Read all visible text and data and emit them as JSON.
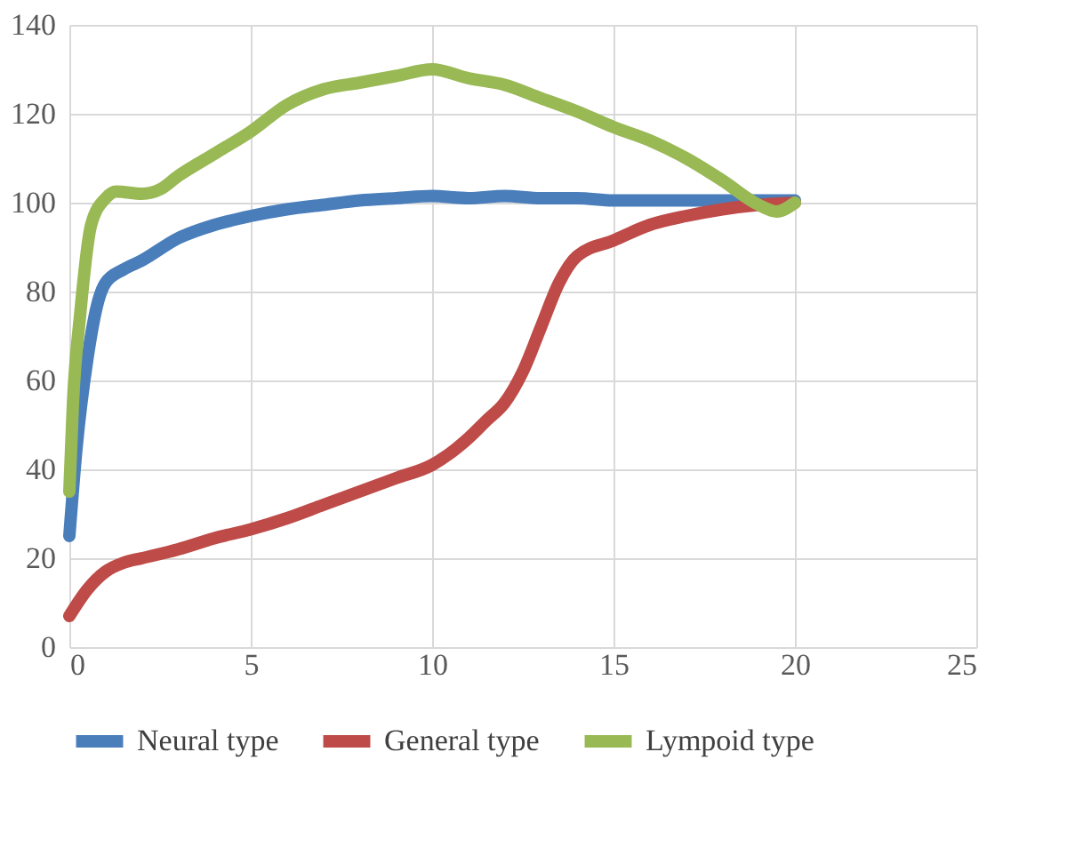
{
  "chart_data": {
    "type": "line",
    "xlim": [
      0,
      25
    ],
    "xticks": [
      0,
      5,
      10,
      15,
      20,
      25
    ],
    "ylim": [
      0,
      140
    ],
    "yticks": [
      0,
      20,
      40,
      60,
      80,
      100,
      120,
      140
    ],
    "grid": true,
    "legend": "bottom",
    "line_style": "solid",
    "marker": "none",
    "series": [
      {
        "name": "Neural type",
        "color": "#4a7ebb",
        "x": [
          0,
          0.2,
          0.5,
          0.8,
          1,
          1.5,
          2,
          3,
          4,
          5,
          6,
          7,
          8,
          9,
          10,
          11,
          12,
          13,
          14,
          15,
          16,
          18,
          19,
          20
        ],
        "values": [
          25,
          45,
          65,
          78,
          82,
          85,
          87,
          92,
          95,
          97,
          98.5,
          99.5,
          100.5,
          101,
          101.5,
          101,
          101.5,
          101,
          101,
          100.5,
          100.5,
          100.5,
          100.5,
          100.5
        ]
      },
      {
        "name": "General type",
        "color": "#be4b48",
        "x": [
          0,
          0.5,
          1,
          1.5,
          2,
          3,
          4,
          5,
          6,
          7,
          8,
          9,
          10,
          11,
          11.5,
          12,
          12.5,
          13,
          13.5,
          14,
          15,
          16,
          17,
          18,
          19,
          20
        ],
        "values": [
          7,
          13,
          17,
          19,
          20,
          22,
          24.5,
          26.5,
          29,
          32,
          35,
          38,
          41,
          47,
          51,
          55,
          62,
          72,
          82,
          88,
          91.5,
          95,
          97,
          98.5,
          99.5,
          100
        ]
      },
      {
        "name": "Lympoid type",
        "color": "#98b954",
        "x": [
          0,
          0.1,
          0.3,
          0.6,
          1,
          1.3,
          2,
          2.5,
          3,
          4,
          5,
          6,
          7,
          8,
          9,
          10,
          11,
          12,
          13,
          14,
          15,
          16,
          17,
          18,
          19,
          19.5,
          20
        ],
        "values": [
          35,
          55,
          75,
          95,
          101,
          102.5,
          102,
          103,
          106,
          111,
          116,
          122,
          125.5,
          127,
          128.5,
          130,
          128,
          126.5,
          123.5,
          120.5,
          117,
          114,
          110,
          105,
          99.5,
          98,
          100
        ]
      }
    ]
  }
}
